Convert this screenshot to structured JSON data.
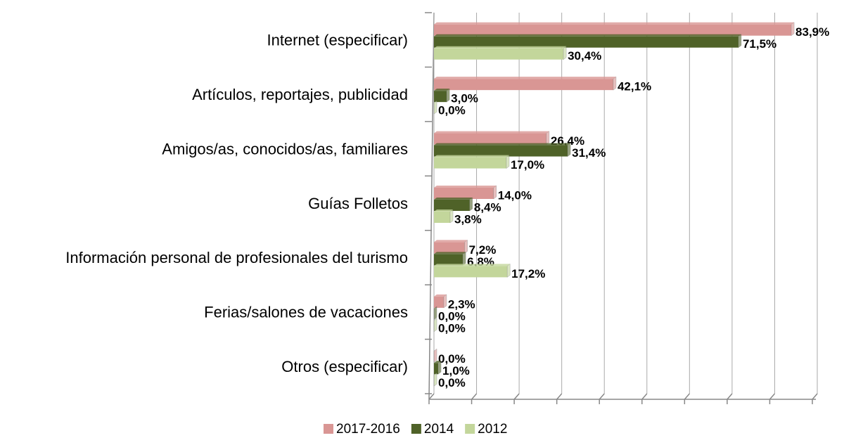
{
  "chart_data": {
    "type": "bar",
    "orientation": "horizontal",
    "categories": [
      "Internet (especificar)",
      "Artículos, reportajes, publicidad",
      "Amigos/as, conocidos/as, familiares",
      "Guías Folletos",
      "Información personal de profesionales del turismo",
      "Ferias/salones de vacaciones",
      "Otros (especificar)"
    ],
    "series": [
      {
        "name": "2017-2016",
        "color": "#d99694",
        "values": [
          83.9,
          42.1,
          26.4,
          14.0,
          7.2,
          2.3,
          0.0
        ],
        "value_labels": [
          "83,9%",
          "42,1%",
          "26,4%",
          "14,0%",
          "7,2%",
          "2,3%",
          "0,0%"
        ]
      },
      {
        "name": "2014",
        "color": "#4f6228",
        "values": [
          71.5,
          3.0,
          31.4,
          8.4,
          6.8,
          0.0,
          1.0
        ],
        "value_labels": [
          "71,5%",
          "3,0%",
          "31,4%",
          "8,4%",
          "6,8%",
          "0,0%",
          "1,0%"
        ]
      },
      {
        "name": "2012",
        "color": "#c3d69b",
        "values": [
          30.4,
          0.0,
          17.0,
          3.8,
          17.2,
          0.0,
          0.0
        ],
        "value_labels": [
          "30,4%",
          "0,0%",
          "17,0%",
          "3,8%",
          "17,2%",
          "0,0%",
          "0,0%"
        ]
      }
    ],
    "xlim": [
      0,
      90
    ],
    "xticks": [
      0,
      10,
      20,
      30,
      40,
      50,
      60,
      70,
      80,
      90
    ],
    "grid": true,
    "legend": "bottom"
  }
}
